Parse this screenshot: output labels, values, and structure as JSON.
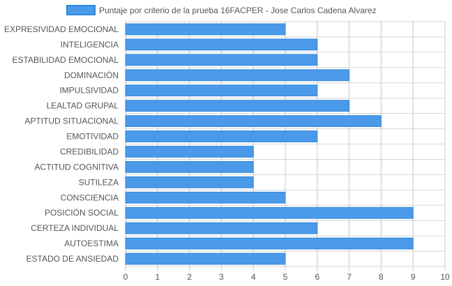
{
  "chart_data": {
    "type": "bar",
    "orientation": "horizontal",
    "legend_position": "top",
    "grid": true,
    "xlim": [
      0,
      10
    ],
    "ticks": [
      0,
      1,
      2,
      3,
      4,
      5,
      6,
      7,
      8,
      9,
      10
    ],
    "colors": {
      "bar_fill": "#4a9ae9",
      "bar_stroke": "#2f86de",
      "grid": "#d6d6d6",
      "axis": "#bbbbbb"
    },
    "series": [
      {
        "name": "Puntaje por criterio de la prueba 16FACPER - Jose Carlos Cadena Alvarez",
        "values": [
          5,
          6,
          6,
          7,
          6,
          7,
          8,
          6,
          4,
          4,
          4,
          5,
          9,
          6,
          9,
          5
        ]
      }
    ],
    "categories": [
      "EXPRESIVIDAD EMOCIONAL",
      "INTELIGENCIA",
      "ESTABILIDAD EMOCIONAL",
      "DOMINACIÓN",
      "IMPULSIVIDAD",
      "LEALTAD GRUPAL",
      "APTITUD SITUACIONAL",
      "EMOTIVIDAD",
      "CREDIBILIDAD",
      "ACTITUD COGNITIVA",
      "SUTILEZA",
      "CONSCIENCIA",
      "POSICIÓN SOCIAL",
      "CERTEZA INDIVIDUAL",
      "AUTOESTIMA",
      "ESTADO DE ANSIEDAD"
    ]
  }
}
